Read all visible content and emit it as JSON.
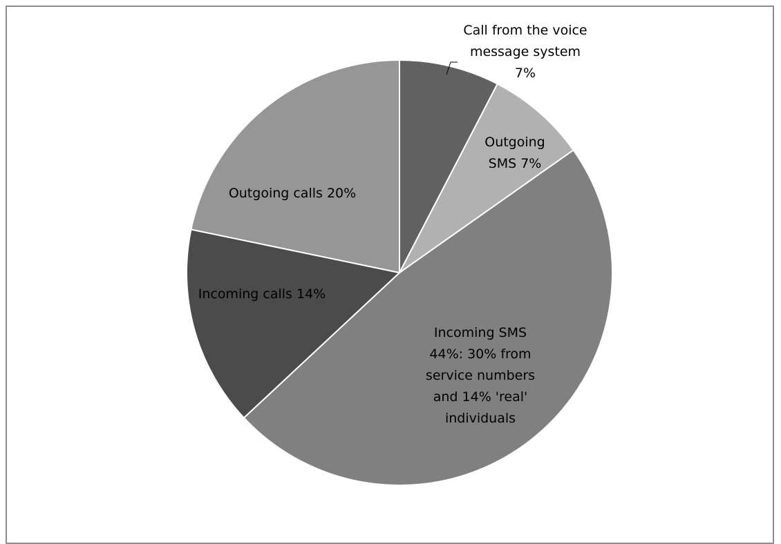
{
  "chart_data": {
    "type": "pie",
    "title": "",
    "slices": [
      {
        "label_lines": [
          "Call from the voice",
          "message system",
          "7%"
        ],
        "value": 7,
        "color": "#616161"
      },
      {
        "label_lines": [
          "Outgoing",
          "SMS 7%"
        ],
        "value": 7,
        "color": "#b1b1b1"
      },
      {
        "label_lines": [
          "Incoming SMS",
          "44%: 30% from",
          "service numbers",
          "and 14% 'real'",
          "individuals"
        ],
        "value": 44,
        "color": "#808080"
      },
      {
        "label_lines": [
          "Incoming calls 14%"
        ],
        "value": 14,
        "color": "#4b4b4b"
      },
      {
        "label_lines": [
          "Outgoing calls 20%"
        ],
        "value": 20,
        "color": "#969696"
      }
    ],
    "start": "12 o'clock",
    "direction": "clockwise",
    "legend": "none",
    "border_color": "#ffffff"
  }
}
